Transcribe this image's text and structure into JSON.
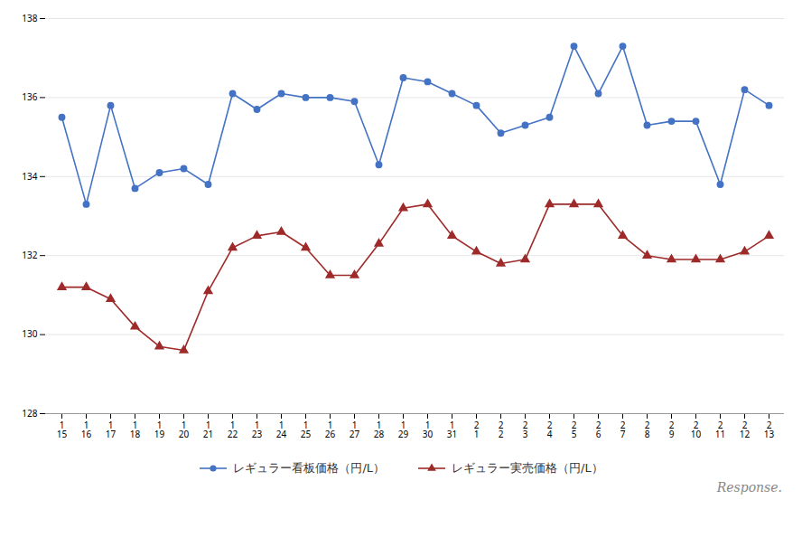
{
  "chart_data": {
    "type": "line",
    "categories": [
      "1\n15",
      "1\n16",
      "1\n17",
      "1\n18",
      "1\n19",
      "1\n20",
      "1\n21",
      "1\n22",
      "1\n23",
      "1\n24",
      "1\n25",
      "1\n26",
      "1\n27",
      "1\n28",
      "1\n29",
      "1\n30",
      "1\n31",
      "2\n1",
      "2\n2",
      "2\n3",
      "2\n4",
      "2\n5",
      "2\n6",
      "2\n7",
      "2\n8",
      "2\n9",
      "2\n10",
      "2\n11",
      "2\n12",
      "2\n13"
    ],
    "series": [
      {
        "name": "レギュラー看板価格（円/L）",
        "color": "#4472c4",
        "marker": "circle",
        "values": [
          135.5,
          133.3,
          135.8,
          133.7,
          134.1,
          134.2,
          133.8,
          136.1,
          135.7,
          136.1,
          136.0,
          136.0,
          135.9,
          134.3,
          136.5,
          136.4,
          136.1,
          135.8,
          135.1,
          135.3,
          135.5,
          137.3,
          136.1,
          137.3,
          135.3,
          135.4,
          135.4,
          133.8,
          136.2,
          135.8
        ]
      },
      {
        "name": "レギュラー実売価格（円/L）",
        "color": "#9e2a2a",
        "marker": "triangle",
        "values": [
          131.2,
          131.2,
          130.9,
          130.2,
          129.7,
          129.6,
          131.1,
          132.2,
          132.5,
          132.6,
          132.2,
          131.5,
          131.5,
          132.3,
          133.2,
          133.3,
          132.5,
          132.1,
          131.8,
          131.9,
          133.3,
          133.3,
          133.3,
          132.5,
          132.0,
          131.9,
          131.9,
          131.9,
          132.1,
          132.5
        ]
      }
    ],
    "ylim": [
      128,
      138
    ],
    "yticks": [
      128,
      130,
      132,
      134,
      136,
      138
    ],
    "grid": true,
    "legend": "bottom",
    "annotations": [
      "Response."
    ]
  }
}
